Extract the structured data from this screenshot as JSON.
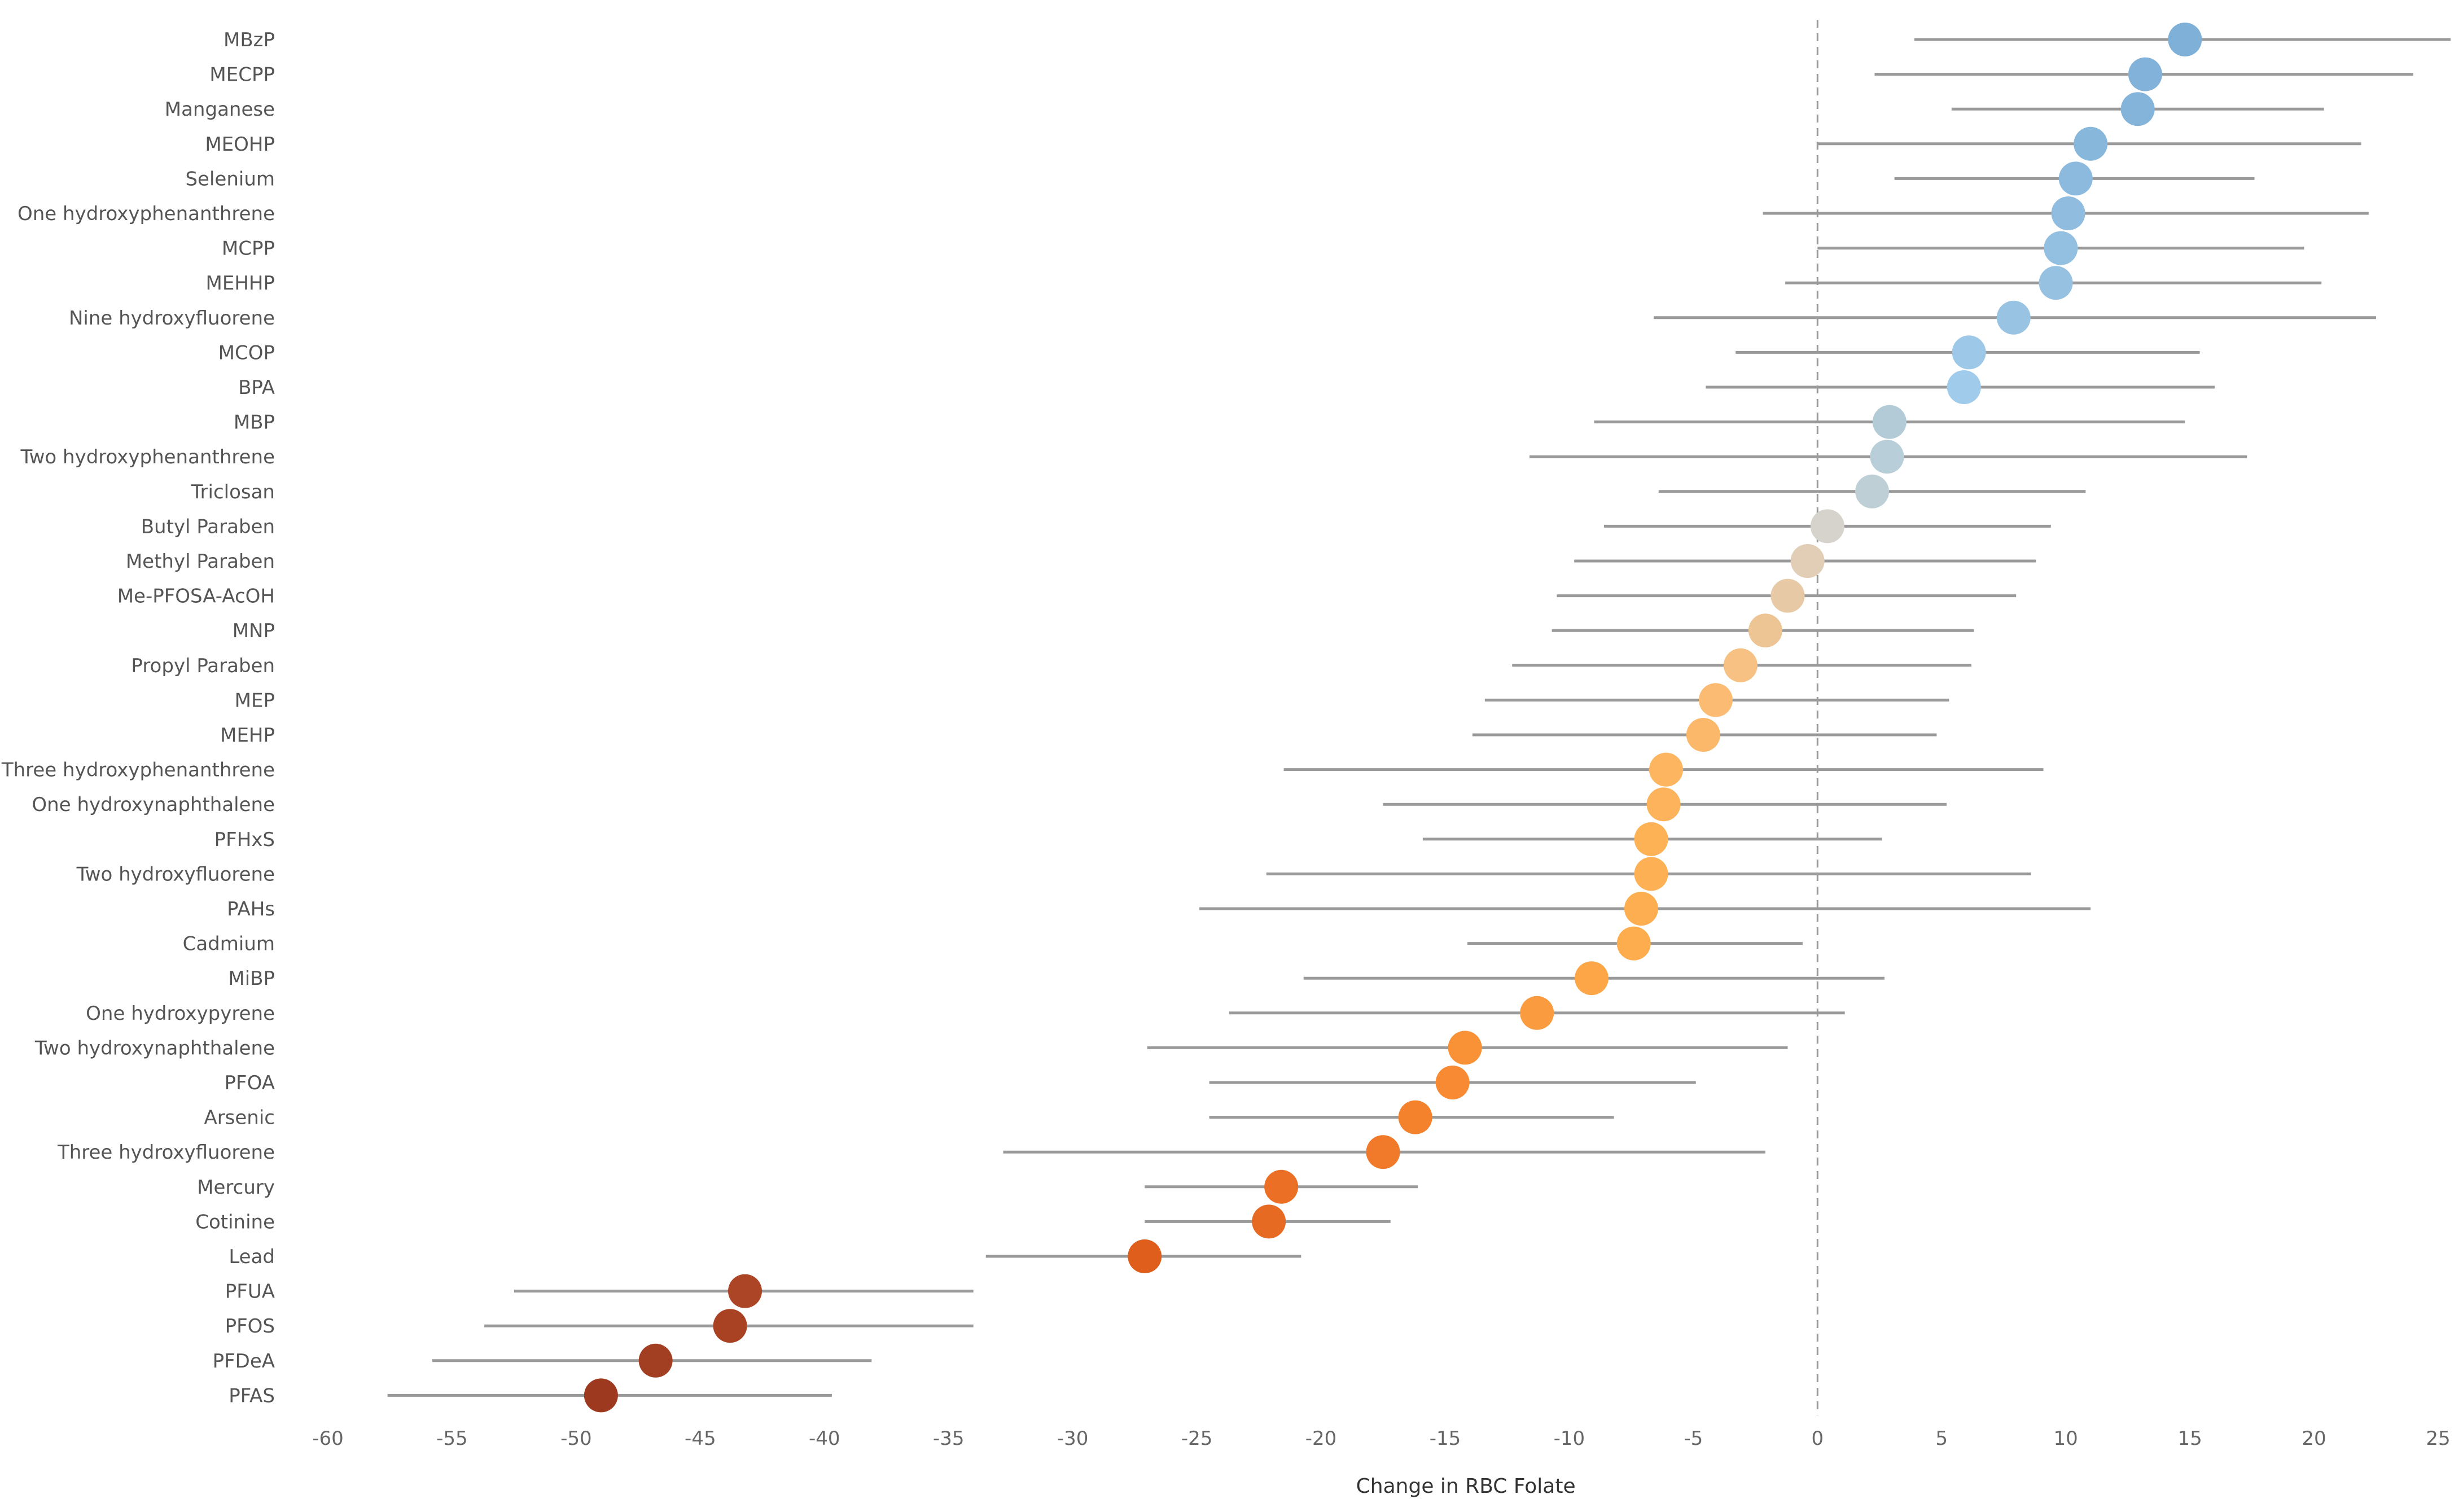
{
  "chart_data": {
    "type": "scatter",
    "subtype": "dot-plot-with-confidence-intervals",
    "xlabel": "Change in RBC Folate",
    "ylabel": "",
    "xlim": [
      -60,
      25
    ],
    "xticks": [
      -60,
      -55,
      -50,
      -45,
      -40,
      -35,
      -30,
      -25,
      -20,
      -15,
      -10,
      -5,
      0,
      5,
      10,
      15,
      20,
      25
    ],
    "reference_line": 0,
    "grid": false,
    "legend": "none",
    "categories": [
      "MBzP",
      "MECPP",
      "Manganese",
      "MEOHP",
      "Selenium",
      "One hydroxyphenanthrene",
      "MCPP",
      "MEHHP",
      "Nine hydroxyfluorene",
      "MCOP",
      "BPA",
      "MBP",
      "Two hydroxyphenanthrene",
      "Triclosan",
      "Butyl Paraben",
      "Methyl Paraben",
      "Me-PFOSA-AcOH",
      "MNP",
      "Propyl Paraben",
      "MEP",
      "MEHP",
      "Three hydroxyphenanthrene",
      "One hydroxynaphthalene",
      "PFHxS",
      "Two hydroxyfluorene",
      "PAHs",
      "Cadmium",
      "MiBP",
      "One hydroxypyrene",
      "Two hydroxynaphthalene",
      "PFOA",
      "Arsenic",
      "Three hydroxyfluorene",
      "Mercury",
      "Cotinine",
      "Lead",
      "PFUA",
      "PFOS",
      "PFDeA",
      "PFAS"
    ],
    "estimates": [
      14.8,
      13.2,
      12.9,
      11.0,
      10.4,
      10.1,
      9.8,
      9.6,
      7.9,
      6.1,
      5.9,
      2.9,
      2.8,
      2.2,
      0.4,
      -0.4,
      -1.2,
      -2.1,
      -3.1,
      -4.1,
      -4.6,
      -6.1,
      -6.2,
      -6.7,
      -6.7,
      -7.1,
      -7.4,
      -9.1,
      -11.3,
      -14.2,
      -14.7,
      -16.2,
      -17.5,
      -21.6,
      -22.1,
      -27.1,
      -43.2,
      -43.8,
      -46.8,
      -49.0
    ],
    "ci_lower": [
      3.9,
      2.3,
      5.4,
      0.0,
      3.1,
      -2.2,
      0.0,
      -1.3,
      -6.6,
      -3.3,
      -4.5,
      -9.0,
      -11.6,
      -6.4,
      -8.6,
      -9.8,
      -10.5,
      -10.7,
      -12.3,
      -13.4,
      -13.9,
      -21.5,
      -17.5,
      -15.9,
      -22.2,
      -24.9,
      -14.1,
      -20.7,
      -23.7,
      -27.0,
      -24.5,
      -24.5,
      -32.8,
      -27.1,
      -27.1,
      -33.5,
      -52.5,
      -53.7,
      -55.8,
      -57.6
    ],
    "ci_upper": [
      25.9,
      24.0,
      20.4,
      21.9,
      17.6,
      22.2,
      19.6,
      20.3,
      22.5,
      15.4,
      16.0,
      14.8,
      17.3,
      10.8,
      9.4,
      8.8,
      8.0,
      6.3,
      6.2,
      5.3,
      4.8,
      9.1,
      5.2,
      2.6,
      8.6,
      11.0,
      -0.6,
      2.7,
      1.1,
      -1.2,
      -4.9,
      -8.2,
      -2.1,
      -16.1,
      -17.2,
      -20.8,
      -34.0,
      -34.0,
      -38.1,
      -39.7
    ],
    "colors": [
      "#7fb0d8",
      "#82b2d9",
      "#85b4da",
      "#88b7dc",
      "#8cbade",
      "#8fbcdf",
      "#93bfe0",
      "#96c1e1",
      "#99c3e2",
      "#9dc8e8",
      "#a0cbea",
      "#b3cbd6",
      "#b8ced8",
      "#bfcfd6",
      "#d6d2cc",
      "#e2ceb6",
      "#e7c9a6",
      "#edc595",
      "#f6c182",
      "#fbbb72",
      "#fcb86a",
      "#fdb55f",
      "#fdb35b",
      "#fdb256",
      "#fdb054",
      "#fdae51",
      "#fdac4e",
      "#fca648",
      "#fb9b3f",
      "#f99137",
      "#f78a32",
      "#f4822d",
      "#f07a2a",
      "#eb6f24",
      "#e66a21",
      "#df5e1b",
      "#ac4525",
      "#a84223",
      "#a23e21",
      "#9c391f"
    ]
  }
}
